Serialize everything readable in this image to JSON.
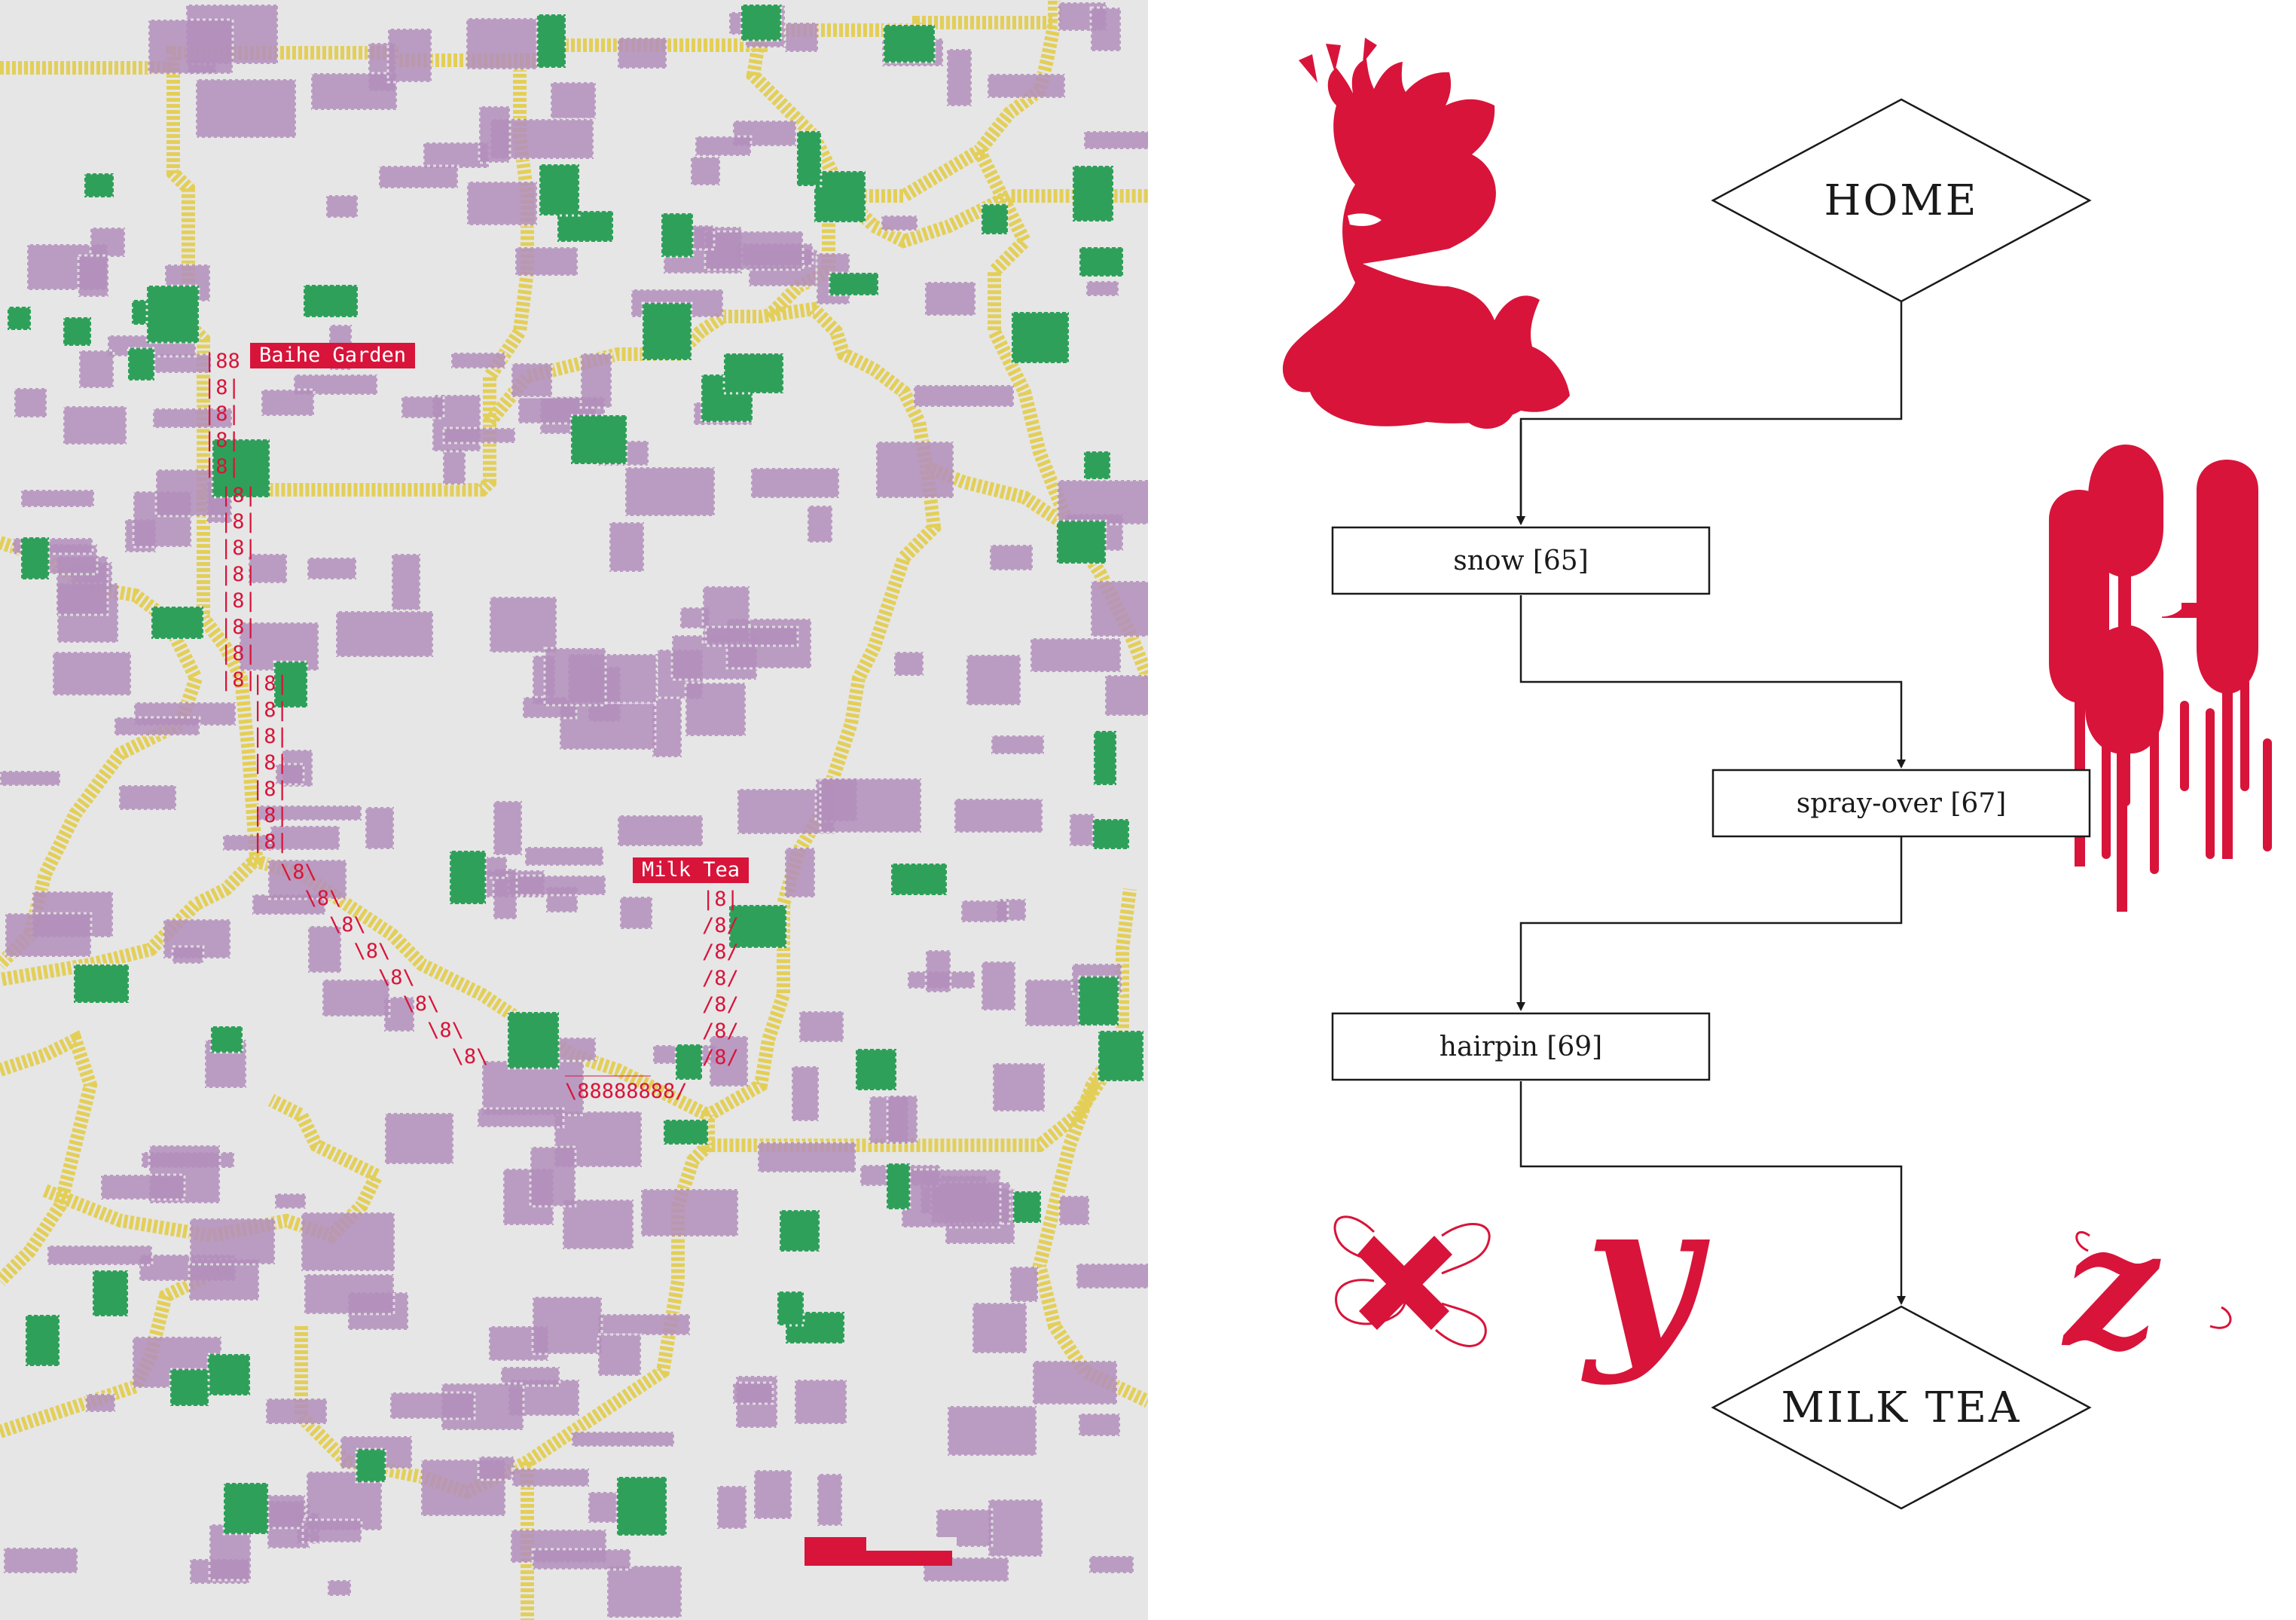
{
  "map": {
    "labels": {
      "start": "Baihe Garden",
      "end": "Milk Tea"
    },
    "route_ascii": {
      "col_a": "|88\n|8|\n|8|\n|8|\n|8|",
      "col_b": "|8|\n|8|\n|8|\n|8|\n|8|\n|8|\n|8|\n|8|",
      "col_c": "|8|\n|8|\n|8|\n|8|\n|8|\n|8|\n|8|",
      "diag_down": "\\8\\\n  \\8\\\n    \\8\\\n      \\8\\\n        \\8\\\n          \\8\\\n            \\8\\\n              \\8\\",
      "diag_up": "|8|\n/8/\n/8/\n/8/\n/8/\n/8/\n/8/",
      "bottom": "_______\n\\88888888/"
    },
    "colors": {
      "background": "#e6e6e6",
      "road": "#e3cf58",
      "building": "#b38fbc",
      "park": "#2ea05a",
      "route": "#d8143a"
    }
  },
  "flowchart": {
    "start": "HOME",
    "steps": [
      {
        "label": "snow [65]"
      },
      {
        "label": "spray-over [67]"
      },
      {
        "label": "hairpin [69]"
      }
    ],
    "end": "MILK TEA",
    "glyphs": [
      "x",
      "y",
      "z"
    ],
    "colors": {
      "accent": "#d8143a",
      "line": "#1a1a1a"
    }
  }
}
